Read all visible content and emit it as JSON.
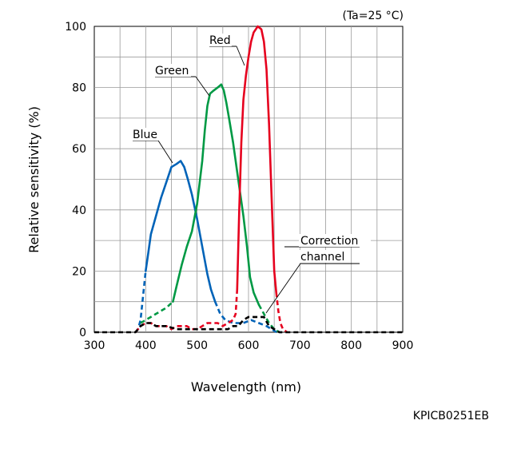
{
  "condition": "(Ta=25 °C)",
  "figure_code": "KPICB0251EB",
  "chart_data": {
    "type": "line",
    "xlabel": "Wavelength (nm)",
    "ylabel": "Relative sensitivity (%)",
    "xlim": [
      300,
      900
    ],
    "ylim": [
      0,
      100
    ],
    "xticks": [
      300,
      400,
      500,
      600,
      700,
      800,
      900
    ],
    "yticks": [
      0,
      20,
      40,
      60,
      80,
      100
    ],
    "grid": true,
    "legend": "none",
    "series": [
      {
        "name": "Blue",
        "color": "#0063b8",
        "solid": [
          [
            400,
            20
          ],
          [
            405,
            26
          ],
          [
            410,
            32
          ],
          [
            420,
            38
          ],
          [
            430,
            44
          ],
          [
            440,
            49
          ],
          [
            450,
            54
          ],
          [
            460,
            55
          ],
          [
            468,
            56
          ],
          [
            475,
            54
          ],
          [
            482,
            50
          ],
          [
            490,
            45
          ],
          [
            500,
            37
          ],
          [
            510,
            28
          ],
          [
            520,
            19
          ],
          [
            527,
            14
          ],
          [
            535,
            10
          ]
        ],
        "dashed": [
          [
            380,
            0
          ],
          [
            385,
            1
          ],
          [
            390,
            4
          ],
          [
            395,
            12
          ],
          [
            400,
            20
          ]
        ],
        "dashed_tail": [
          [
            535,
            10
          ],
          [
            545,
            6
          ],
          [
            555,
            4
          ],
          [
            570,
            3
          ],
          [
            590,
            3
          ],
          [
            605,
            4
          ],
          [
            620,
            3
          ],
          [
            635,
            2
          ],
          [
            645,
            1
          ],
          [
            655,
            0
          ],
          [
            665,
            0
          ]
        ]
      },
      {
        "name": "Green",
        "color": "#009944",
        "solid": [
          [
            453,
            10
          ],
          [
            460,
            15
          ],
          [
            470,
            22
          ],
          [
            480,
            28
          ],
          [
            490,
            33
          ],
          [
            500,
            42
          ],
          [
            510,
            56
          ],
          [
            515,
            66
          ],
          [
            520,
            74
          ],
          [
            525,
            78
          ],
          [
            532,
            79
          ],
          [
            540,
            80
          ],
          [
            547,
            81
          ],
          [
            552,
            79
          ],
          [
            557,
            75
          ],
          [
            562,
            70
          ],
          [
            570,
            62
          ],
          [
            580,
            50
          ],
          [
            590,
            38
          ],
          [
            597,
            28
          ],
          [
            603,
            18
          ],
          [
            610,
            13
          ],
          [
            620,
            9
          ]
        ],
        "dashed": [
          [
            390,
            3
          ],
          [
            400,
            4
          ],
          [
            410,
            5
          ],
          [
            420,
            6
          ],
          [
            430,
            7
          ],
          [
            440,
            8
          ],
          [
            453,
            10
          ]
        ],
        "dashed_tail": [
          [
            620,
            9
          ],
          [
            630,
            6
          ],
          [
            640,
            3
          ],
          [
            650,
            1
          ],
          [
            660,
            0
          ]
        ]
      },
      {
        "name": "Red",
        "color": "#e6001e",
        "solid": [
          [
            578,
            14
          ],
          [
            582,
            40
          ],
          [
            586,
            62
          ],
          [
            590,
            76
          ],
          [
            595,
            84
          ],
          [
            600,
            90
          ],
          [
            605,
            95
          ],
          [
            610,
            98
          ],
          [
            618,
            100
          ],
          [
            625,
            99
          ],
          [
            630,
            95
          ],
          [
            635,
            86
          ],
          [
            640,
            68
          ],
          [
            645,
            44
          ],
          [
            650,
            20
          ],
          [
            654,
            13
          ]
        ],
        "dashed": [
          [
            380,
            0
          ],
          [
            390,
            2
          ],
          [
            400,
            3
          ],
          [
            410,
            3
          ],
          [
            420,
            2
          ],
          [
            430,
            2
          ],
          [
            440,
            2
          ],
          [
            450,
            1
          ],
          [
            460,
            2
          ],
          [
            470,
            2
          ],
          [
            480,
            2
          ],
          [
            490,
            1
          ],
          [
            500,
            1
          ],
          [
            510,
            2
          ],
          [
            520,
            3
          ],
          [
            530,
            3
          ],
          [
            540,
            3
          ],
          [
            550,
            2
          ],
          [
            560,
            3
          ],
          [
            570,
            4
          ],
          [
            575,
            6
          ],
          [
            578,
            14
          ]
        ],
        "dashed_tail": [
          [
            654,
            13
          ],
          [
            658,
            7
          ],
          [
            662,
            3
          ],
          [
            667,
            1
          ],
          [
            675,
            0
          ]
        ]
      },
      {
        "name": "Correction channel",
        "color": "#000000",
        "solid": [],
        "dashed": [
          [
            300,
            0
          ],
          [
            380,
            0
          ],
          [
            390,
            2
          ],
          [
            400,
            3
          ],
          [
            410,
            3
          ],
          [
            420,
            2
          ],
          [
            440,
            2
          ],
          [
            460,
            1
          ],
          [
            480,
            1
          ],
          [
            500,
            1
          ],
          [
            520,
            1
          ],
          [
            540,
            1
          ],
          [
            560,
            1
          ],
          [
            570,
            2
          ],
          [
            580,
            2
          ],
          [
            590,
            4
          ],
          [
            600,
            5
          ],
          [
            620,
            5
          ],
          [
            630,
            5
          ],
          [
            640,
            2
          ],
          [
            650,
            1
          ],
          [
            660,
            0
          ],
          [
            700,
            0
          ],
          [
            800,
            0
          ],
          [
            900,
            0
          ]
        ],
        "dashed_tail": []
      }
    ],
    "annotations": [
      {
        "text": "Red",
        "series": "Red"
      },
      {
        "text": "Green",
        "series": "Green"
      },
      {
        "text": "Blue",
        "series": "Blue"
      },
      {
        "text": "Correction",
        "series": "Correction channel"
      },
      {
        "text": "channel",
        "series": "Correction channel"
      }
    ]
  }
}
